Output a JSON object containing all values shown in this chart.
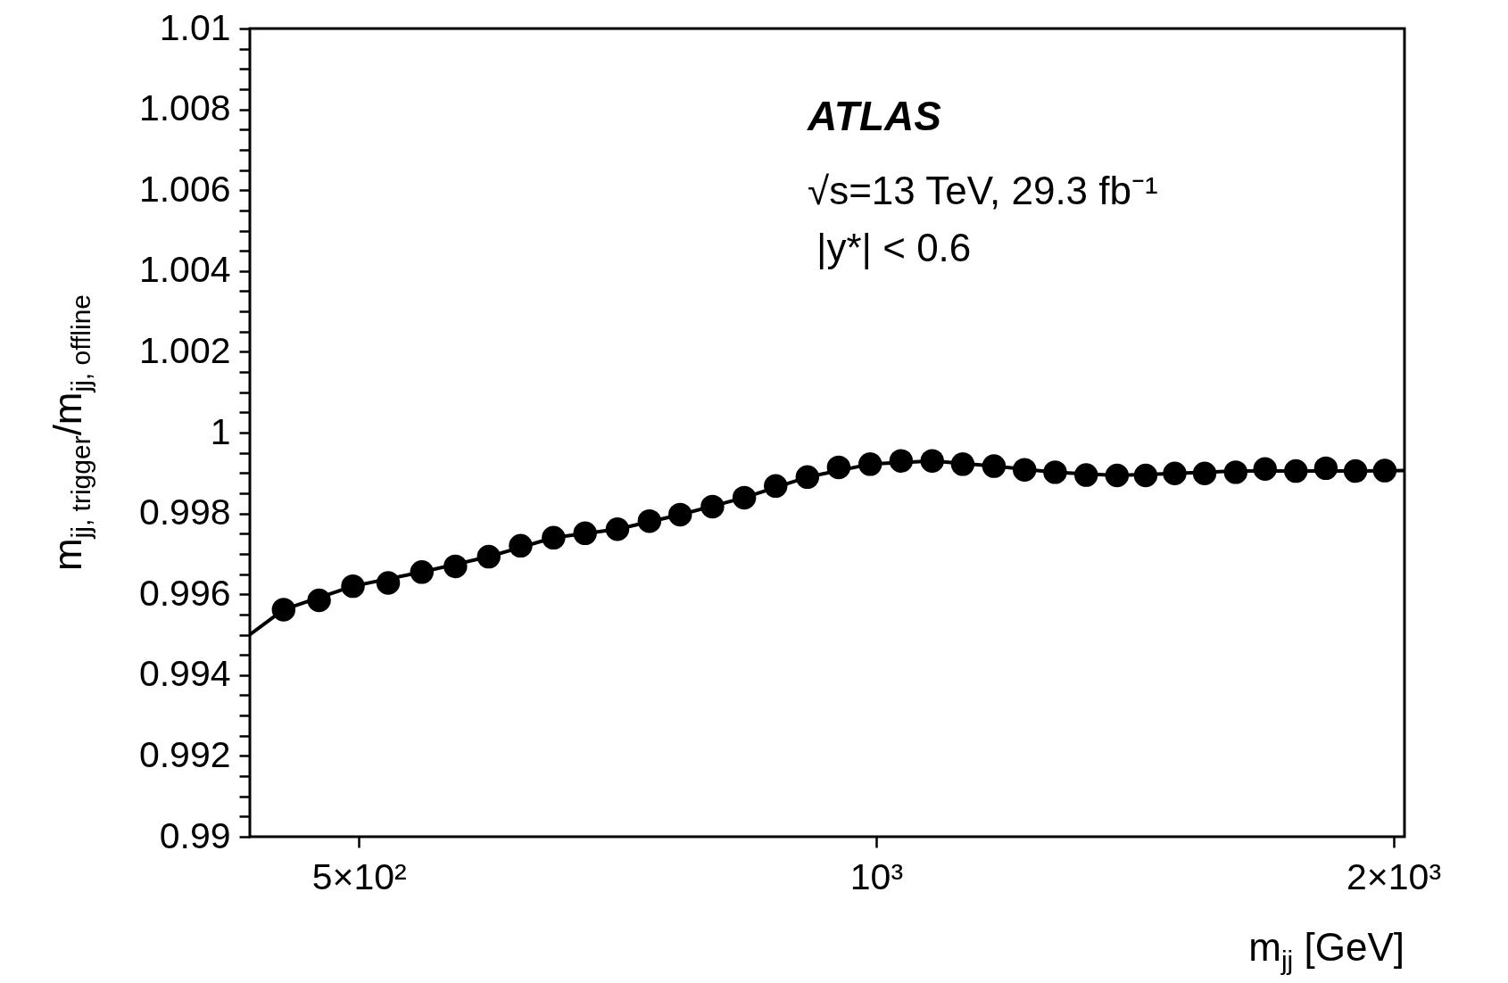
{
  "chart_data": {
    "type": "scatter",
    "xlabel": "m$_{jj}$ [GeV]",
    "ylabel": "m$_{jj, trigger}$/m$_{jj, offline}$",
    "annotations": [
      "ATLAS",
      "√s=13 TeV, 29.3 fb⁻¹",
      "|y*| < 0.6"
    ],
    "log": "x",
    "grid": false,
    "marker": "circle",
    "xlim": [
      432,
      2030
    ],
    "xticks": [
      {
        "value": 500,
        "label": "5×10²"
      },
      {
        "value": 1000,
        "label": "10³"
      },
      {
        "value": 2000,
        "label": "2×10³"
      }
    ],
    "ylim": [
      0.99,
      1.01
    ],
    "yticks": [
      0.99,
      {
        "value": 0.9905,
        "label": null
      },
      {
        "value": 0.991,
        "label": null
      },
      {
        "value": 0.9915,
        "label": null
      },
      0.992,
      {
        "value": 0.9925,
        "label": null
      },
      {
        "value": 0.993,
        "label": null
      },
      {
        "value": 0.9935,
        "label": null
      },
      0.994,
      {
        "value": 0.9945,
        "label": null
      },
      {
        "value": 0.995,
        "label": null
      },
      {
        "value": 0.9955,
        "label": null
      },
      0.996,
      {
        "value": 0.9965,
        "label": null
      },
      {
        "value": 0.997,
        "label": null
      },
      {
        "value": 0.9975,
        "label": null
      },
      0.998,
      {
        "value": 0.9985,
        "label": null
      },
      {
        "value": 0.999,
        "label": null
      },
      {
        "value": 0.9995,
        "label": null
      },
      1,
      {
        "value": 1.0005,
        "label": null
      },
      {
        "value": 1.001,
        "label": null
      },
      {
        "value": 1.0015,
        "label": null
      },
      1.002,
      {
        "value": 1.0025,
        "label": null
      },
      {
        "value": 1.003,
        "label": null
      },
      {
        "value": 1.0035,
        "label": null
      },
      1.004,
      {
        "value": 1.0045,
        "label": null
      },
      {
        "value": 1.005,
        "label": null
      },
      {
        "value": 1.0055,
        "label": null
      },
      1.006,
      {
        "value": 1.0065,
        "label": null
      },
      {
        "value": 1.007,
        "label": null
      },
      {
        "value": 1.0075,
        "label": null
      },
      1.008,
      {
        "value": 1.0085,
        "label": null
      },
      {
        "value": 1.009,
        "label": null
      },
      {
        "value": 1.0095,
        "label": null
      },
      1.01
    ],
    "series": [
      {
        "type": "line",
        "color": "#000000",
        "line_style": "solid",
        "marker": "none",
        "x": [
          432,
          452,
          496,
          544,
          595,
          649,
          707,
          769,
          838,
          912,
          992,
          1078,
          1171,
          1271,
          1381,
          1492,
          1619,
          1755,
          1901,
          2030
        ],
        "values": [
          0.995,
          0.99562,
          0.9962,
          0.99655,
          0.99693,
          0.9974,
          0.99761,
          0.99797,
          0.99839,
          0.9989,
          0.99922,
          0.9993,
          0.99917,
          0.99902,
          0.99894,
          0.99899,
          0.99905,
          0.99905,
          0.99905,
          0.99906
        ]
      },
      {
        "color": "#000000",
        "x": [
          452,
          474,
          496,
          520,
          544,
          569,
          595,
          621,
          649,
          677,
          707,
          738,
          769,
          803,
          838,
          874,
          912,
          951,
          992,
          1034,
          1078,
          1123,
          1171,
          1220,
          1271,
          1325,
          1381,
          1435,
          1492,
          1553,
          1619,
          1684,
          1755,
          1827,
          1901,
          1977
        ],
        "values": [
          0.99562,
          0.99585,
          0.9962,
          0.99628,
          0.99655,
          0.99669,
          0.99693,
          0.9972,
          0.9974,
          0.99751,
          0.99761,
          0.99781,
          0.99797,
          0.99817,
          0.99839,
          0.99868,
          0.9989,
          0.99914,
          0.99922,
          0.9993,
          0.9993,
          0.99922,
          0.99917,
          0.99908,
          0.99902,
          0.99895,
          0.99894,
          0.99894,
          0.99899,
          0.99899,
          0.99902,
          0.9991,
          0.99905,
          0.99912,
          0.99905,
          0.99906
        ]
      }
    ]
  }
}
